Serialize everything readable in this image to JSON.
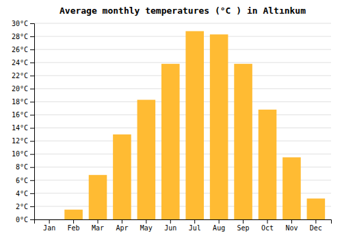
{
  "chart_data": {
    "type": "bar",
    "title": "Average monthly temperatures (°C ) in Altınkum",
    "categories": [
      "Jan",
      "Feb",
      "Mar",
      "Apr",
      "May",
      "Jun",
      "Jul",
      "Aug",
      "Sep",
      "Oct",
      "Nov",
      "Dec"
    ],
    "values": [
      0,
      1.5,
      6.8,
      13.0,
      18.3,
      23.8,
      28.8,
      28.3,
      23.8,
      16.8,
      9.5,
      3.2
    ],
    "color": "#FFBB33",
    "ylim": [
      0,
      30
    ],
    "yticks": [
      {
        "value": 0,
        "label": "0°C"
      },
      {
        "value": 2,
        "label": "2°C"
      },
      {
        "value": 4,
        "label": "4°C"
      },
      {
        "value": 6,
        "label": "6°C"
      },
      {
        "value": 8,
        "label": "8°C"
      },
      {
        "value": 10,
        "label": "10°C"
      },
      {
        "value": 12,
        "label": "12°C"
      },
      {
        "value": 14,
        "label": "14°C"
      },
      {
        "value": 16,
        "label": "16°C"
      },
      {
        "value": 18,
        "label": "18°C"
      },
      {
        "value": 20,
        "label": "20°C"
      },
      {
        "value": 22,
        "label": "22°C"
      },
      {
        "value": 24,
        "label": "24°C"
      },
      {
        "value": 26,
        "label": "26°C"
      },
      {
        "value": 28,
        "label": "28°C"
      },
      {
        "value": 30,
        "label": "30°C"
      }
    ],
    "grid": true
  }
}
